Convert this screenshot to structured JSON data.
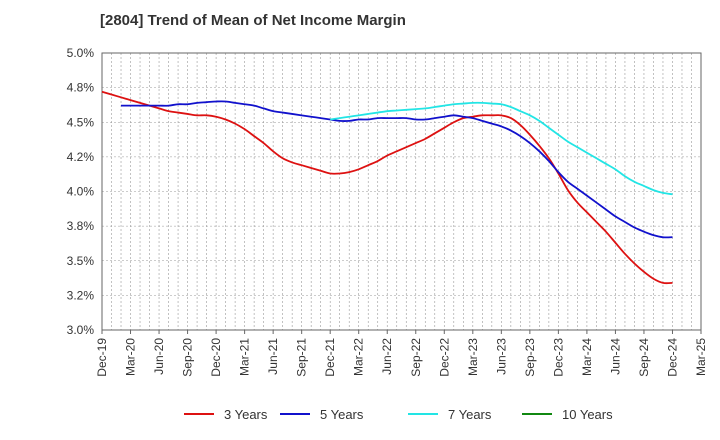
{
  "chart_data": {
    "type": "line",
    "title": "[2804]  Trend of Mean of Net Income Margin",
    "xlabel": "",
    "ylabel": "",
    "ylim": [
      3.0,
      5.0
    ],
    "y_ticks": [
      "3.0%",
      "3.2%",
      "3.5%",
      "3.8%",
      "4.0%",
      "4.2%",
      "4.5%",
      "4.8%",
      "5.0%"
    ],
    "x_ticks": [
      "Dec-19",
      "Mar-20",
      "Jun-20",
      "Sep-20",
      "Dec-20",
      "Mar-21",
      "Jun-21",
      "Sep-21",
      "Dec-21",
      "Mar-22",
      "Jun-22",
      "Sep-22",
      "Dec-22",
      "Mar-23",
      "Jun-23",
      "Sep-23",
      "Dec-23",
      "Mar-24",
      "Jun-24",
      "Sep-24",
      "Dec-24",
      "Mar-25"
    ],
    "grid": true,
    "legend_position": "bottom",
    "series": [
      {
        "name": "3 Years",
        "color": "#dd1111",
        "points": [
          [
            "Dec-19",
            4.72
          ],
          [
            "Jan-20",
            4.7
          ],
          [
            "Feb-20",
            4.68
          ],
          [
            "Mar-20",
            4.66
          ],
          [
            "Apr-20",
            4.64
          ],
          [
            "May-20",
            4.62
          ],
          [
            "Jun-20",
            4.6
          ],
          [
            "Jul-20",
            4.58
          ],
          [
            "Aug-20",
            4.57
          ],
          [
            "Sep-20",
            4.56
          ],
          [
            "Oct-20",
            4.55
          ],
          [
            "Nov-20",
            4.55
          ],
          [
            "Dec-20",
            4.54
          ],
          [
            "Jan-21",
            4.52
          ],
          [
            "Feb-21",
            4.49
          ],
          [
            "Mar-21",
            4.45
          ],
          [
            "Apr-21",
            4.4
          ],
          [
            "May-21",
            4.35
          ],
          [
            "Jun-21",
            4.29
          ],
          [
            "Jul-21",
            4.24
          ],
          [
            "Aug-21",
            4.21
          ],
          [
            "Sep-21",
            4.19
          ],
          [
            "Oct-21",
            4.17
          ],
          [
            "Nov-21",
            4.15
          ],
          [
            "Dec-21",
            4.13
          ],
          [
            "Jan-22",
            4.13
          ],
          [
            "Feb-22",
            4.14
          ],
          [
            "Mar-22",
            4.16
          ],
          [
            "Apr-22",
            4.19
          ],
          [
            "May-22",
            4.22
          ],
          [
            "Jun-22",
            4.26
          ],
          [
            "Jul-22",
            4.29
          ],
          [
            "Aug-22",
            4.32
          ],
          [
            "Sep-22",
            4.35
          ],
          [
            "Oct-22",
            4.38
          ],
          [
            "Nov-22",
            4.42
          ],
          [
            "Dec-22",
            4.46
          ],
          [
            "Jan-23",
            4.5
          ],
          [
            "Feb-23",
            4.53
          ],
          [
            "Mar-23",
            4.54
          ],
          [
            "Apr-23",
            4.55
          ],
          [
            "May-23",
            4.55
          ],
          [
            "Jun-23",
            4.55
          ],
          [
            "Jul-23",
            4.53
          ],
          [
            "Aug-23",
            4.48
          ],
          [
            "Sep-23",
            4.41
          ],
          [
            "Oct-23",
            4.33
          ],
          [
            "Nov-23",
            4.24
          ],
          [
            "Dec-23",
            4.13
          ],
          [
            "Jan-24",
            4.01
          ],
          [
            "Feb-24",
            3.92
          ],
          [
            "Mar-24",
            3.85
          ],
          [
            "Apr-24",
            3.78
          ],
          [
            "May-24",
            3.71
          ],
          [
            "Jun-24",
            3.63
          ],
          [
            "Jul-24",
            3.55
          ],
          [
            "Aug-24",
            3.48
          ],
          [
            "Sep-24",
            3.42
          ],
          [
            "Oct-24",
            3.37
          ],
          [
            "Nov-24",
            3.34
          ],
          [
            "Dec-24",
            3.34
          ]
        ]
      },
      {
        "name": "5 Years",
        "color": "#1111cc",
        "points": [
          [
            "Feb-20",
            4.62
          ],
          [
            "Mar-20",
            4.62
          ],
          [
            "Apr-20",
            4.62
          ],
          [
            "May-20",
            4.62
          ],
          [
            "Jun-20",
            4.62
          ],
          [
            "Jul-20",
            4.62
          ],
          [
            "Aug-20",
            4.63
          ],
          [
            "Sep-20",
            4.63
          ],
          [
            "Oct-20",
            4.64
          ],
          [
            "Nov-20",
            4.645
          ],
          [
            "Dec-20",
            4.65
          ],
          [
            "Jan-21",
            4.65
          ],
          [
            "Feb-21",
            4.64
          ],
          [
            "Mar-21",
            4.63
          ],
          [
            "Apr-21",
            4.62
          ],
          [
            "May-21",
            4.6
          ],
          [
            "Jun-21",
            4.58
          ],
          [
            "Jul-21",
            4.57
          ],
          [
            "Aug-21",
            4.56
          ],
          [
            "Sep-21",
            4.55
          ],
          [
            "Oct-21",
            4.54
          ],
          [
            "Nov-21",
            4.53
          ],
          [
            "Dec-21",
            4.52
          ],
          [
            "Jan-22",
            4.51
          ],
          [
            "Feb-22",
            4.51
          ],
          [
            "Mar-22",
            4.52
          ],
          [
            "Apr-22",
            4.52
          ],
          [
            "May-22",
            4.53
          ],
          [
            "Jun-22",
            4.53
          ],
          [
            "Jul-22",
            4.53
          ],
          [
            "Aug-22",
            4.53
          ],
          [
            "Sep-22",
            4.52
          ],
          [
            "Oct-22",
            4.52
          ],
          [
            "Nov-22",
            4.53
          ],
          [
            "Dec-22",
            4.54
          ],
          [
            "Jan-23",
            4.55
          ],
          [
            "Feb-23",
            4.54
          ],
          [
            "Mar-23",
            4.53
          ],
          [
            "Apr-23",
            4.51
          ],
          [
            "May-23",
            4.49
          ],
          [
            "Jun-23",
            4.47
          ],
          [
            "Jul-23",
            4.44
          ],
          [
            "Aug-23",
            4.4
          ],
          [
            "Sep-23",
            4.35
          ],
          [
            "Oct-23",
            4.29
          ],
          [
            "Nov-23",
            4.22
          ],
          [
            "Dec-23",
            4.14
          ],
          [
            "Jan-24",
            4.07
          ],
          [
            "Feb-24",
            4.02
          ],
          [
            "Mar-24",
            3.97
          ],
          [
            "Apr-24",
            3.92
          ],
          [
            "May-24",
            3.87
          ],
          [
            "Jun-24",
            3.82
          ],
          [
            "Jul-24",
            3.78
          ],
          [
            "Aug-24",
            3.74
          ],
          [
            "Sep-24",
            3.71
          ],
          [
            "Oct-24",
            3.685
          ],
          [
            "Nov-24",
            3.67
          ],
          [
            "Dec-24",
            3.67
          ]
        ]
      },
      {
        "name": "7 Years",
        "color": "#22e5e5",
        "points": [
          [
            "Dec-21",
            4.52
          ],
          [
            "Jan-22",
            4.53
          ],
          [
            "Feb-22",
            4.54
          ],
          [
            "Mar-22",
            4.55
          ],
          [
            "Apr-22",
            4.56
          ],
          [
            "May-22",
            4.57
          ],
          [
            "Jun-22",
            4.58
          ],
          [
            "Jul-22",
            4.585
          ],
          [
            "Aug-22",
            4.59
          ],
          [
            "Sep-22",
            4.595
          ],
          [
            "Oct-22",
            4.6
          ],
          [
            "Nov-22",
            4.61
          ],
          [
            "Dec-22",
            4.62
          ],
          [
            "Jan-23",
            4.63
          ],
          [
            "Feb-23",
            4.635
          ],
          [
            "Mar-23",
            4.64
          ],
          [
            "Apr-23",
            4.64
          ],
          [
            "May-23",
            4.635
          ],
          [
            "Jun-23",
            4.63
          ],
          [
            "Jul-23",
            4.61
          ],
          [
            "Aug-23",
            4.58
          ],
          [
            "Sep-23",
            4.55
          ],
          [
            "Oct-23",
            4.51
          ],
          [
            "Nov-23",
            4.46
          ],
          [
            "Dec-23",
            4.41
          ],
          [
            "Jan-24",
            4.36
          ],
          [
            "Feb-24",
            4.32
          ],
          [
            "Mar-24",
            4.28
          ],
          [
            "Apr-24",
            4.24
          ],
          [
            "May-24",
            4.2
          ],
          [
            "Jun-24",
            4.16
          ],
          [
            "Jul-24",
            4.11
          ],
          [
            "Aug-24",
            4.07
          ],
          [
            "Sep-24",
            4.04
          ],
          [
            "Oct-24",
            4.01
          ],
          [
            "Nov-24",
            3.99
          ],
          [
            "Dec-24",
            3.98
          ]
        ]
      },
      {
        "name": "10 Years",
        "color": "#118811",
        "points": []
      }
    ]
  }
}
